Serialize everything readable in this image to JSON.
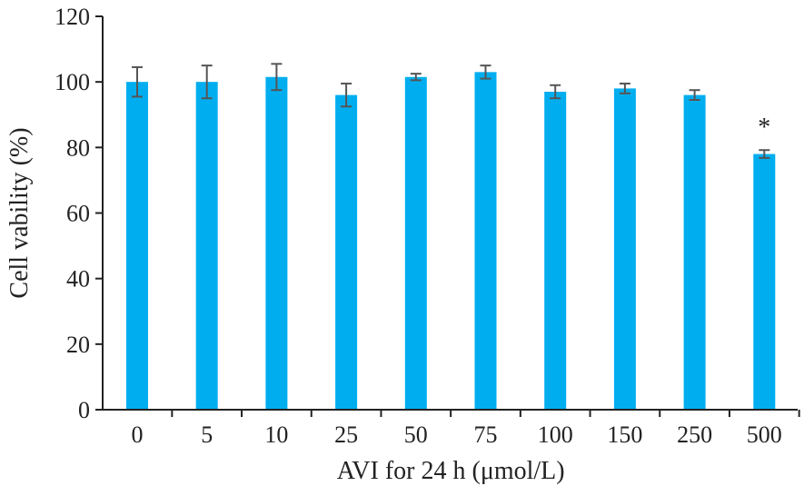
{
  "chart_data": {
    "type": "bar",
    "title": "",
    "xlabel": "AVI for 24 h (μmol/L)",
    "ylabel": "Cell vability (%)",
    "categories": [
      "0",
      "5",
      "10",
      "25",
      "50",
      "75",
      "100",
      "150",
      "250",
      "500"
    ],
    "values": [
      100,
      100,
      101.5,
      96,
      101.5,
      103,
      97,
      98,
      96,
      78
    ],
    "errors": [
      4.5,
      5,
      4,
      3.5,
      1,
      2,
      2,
      1.5,
      1.5,
      1.2
    ],
    "annotations": [
      "",
      "",
      "",
      "",
      "",
      "",
      "",
      "",
      "",
      "*"
    ],
    "ylim": [
      0,
      120
    ],
    "yticks": [
      0,
      20,
      40,
      60,
      80,
      100,
      120
    ],
    "grid": false,
    "legend": "none",
    "bar_color": "#00AEEF",
    "error_color": "#555555",
    "axis_color": "#222222"
  }
}
